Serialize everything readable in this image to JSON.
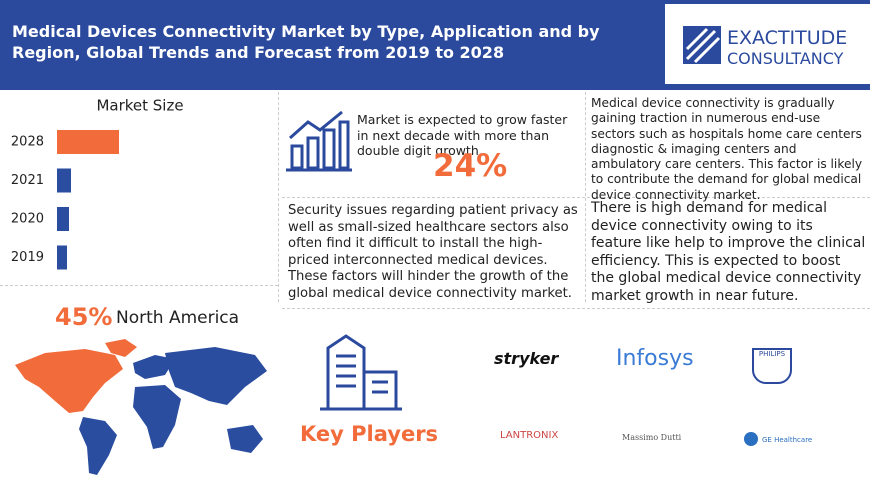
{
  "header": {
    "title": "Medical Devices Connectivity Market by Type, Application and by Region, Global Trends and Forecast from 2019 to 2028",
    "logo_top": "EXACTITUDE",
    "logo_bottom": "CONSULTANCY"
  },
  "chart_data": {
    "type": "bar",
    "orientation": "horizontal",
    "title": "Market Size",
    "categories": [
      "2028",
      "2021",
      "2020",
      "2019"
    ],
    "values": [
      62,
      14,
      12,
      10
    ],
    "colors": [
      "#f26b3a",
      "#2a4da0",
      "#2a4da0",
      "#2a4da0"
    ]
  },
  "growth": {
    "text": "Market is expected to grow faster in next decade with more than double digit growth.",
    "cagr": "24%"
  },
  "driver": {
    "text": "Medical device connectivity is gradually gaining traction in numerous end-use sectors such as hospitals home care centers diagnostic & imaging centers and ambulatory care centers. This factor is likely to contribute the  demand for global medical device connectivity market."
  },
  "restraint": {
    "text": "Security issues regarding patient privacy as well as small-sized healthcare sectors also often find it difficult to install the high-priced interconnected medical devices. These factors will hinder the growth of the global medical device connectivity market."
  },
  "opportunity": {
    "text": "There is high demand for medical device connectivity owing to its feature like help to improve the clinical efficiency. This is expected to boost the global medical device connectivity market growth in near future."
  },
  "region": {
    "share": "45%",
    "name": "North America"
  },
  "key_players": {
    "title": "Key Players",
    "players": [
      "stryker",
      "Infosys",
      "PHILIPS",
      "LANTRONIX",
      "Massimo Dutti",
      "GE Healthcare"
    ]
  }
}
